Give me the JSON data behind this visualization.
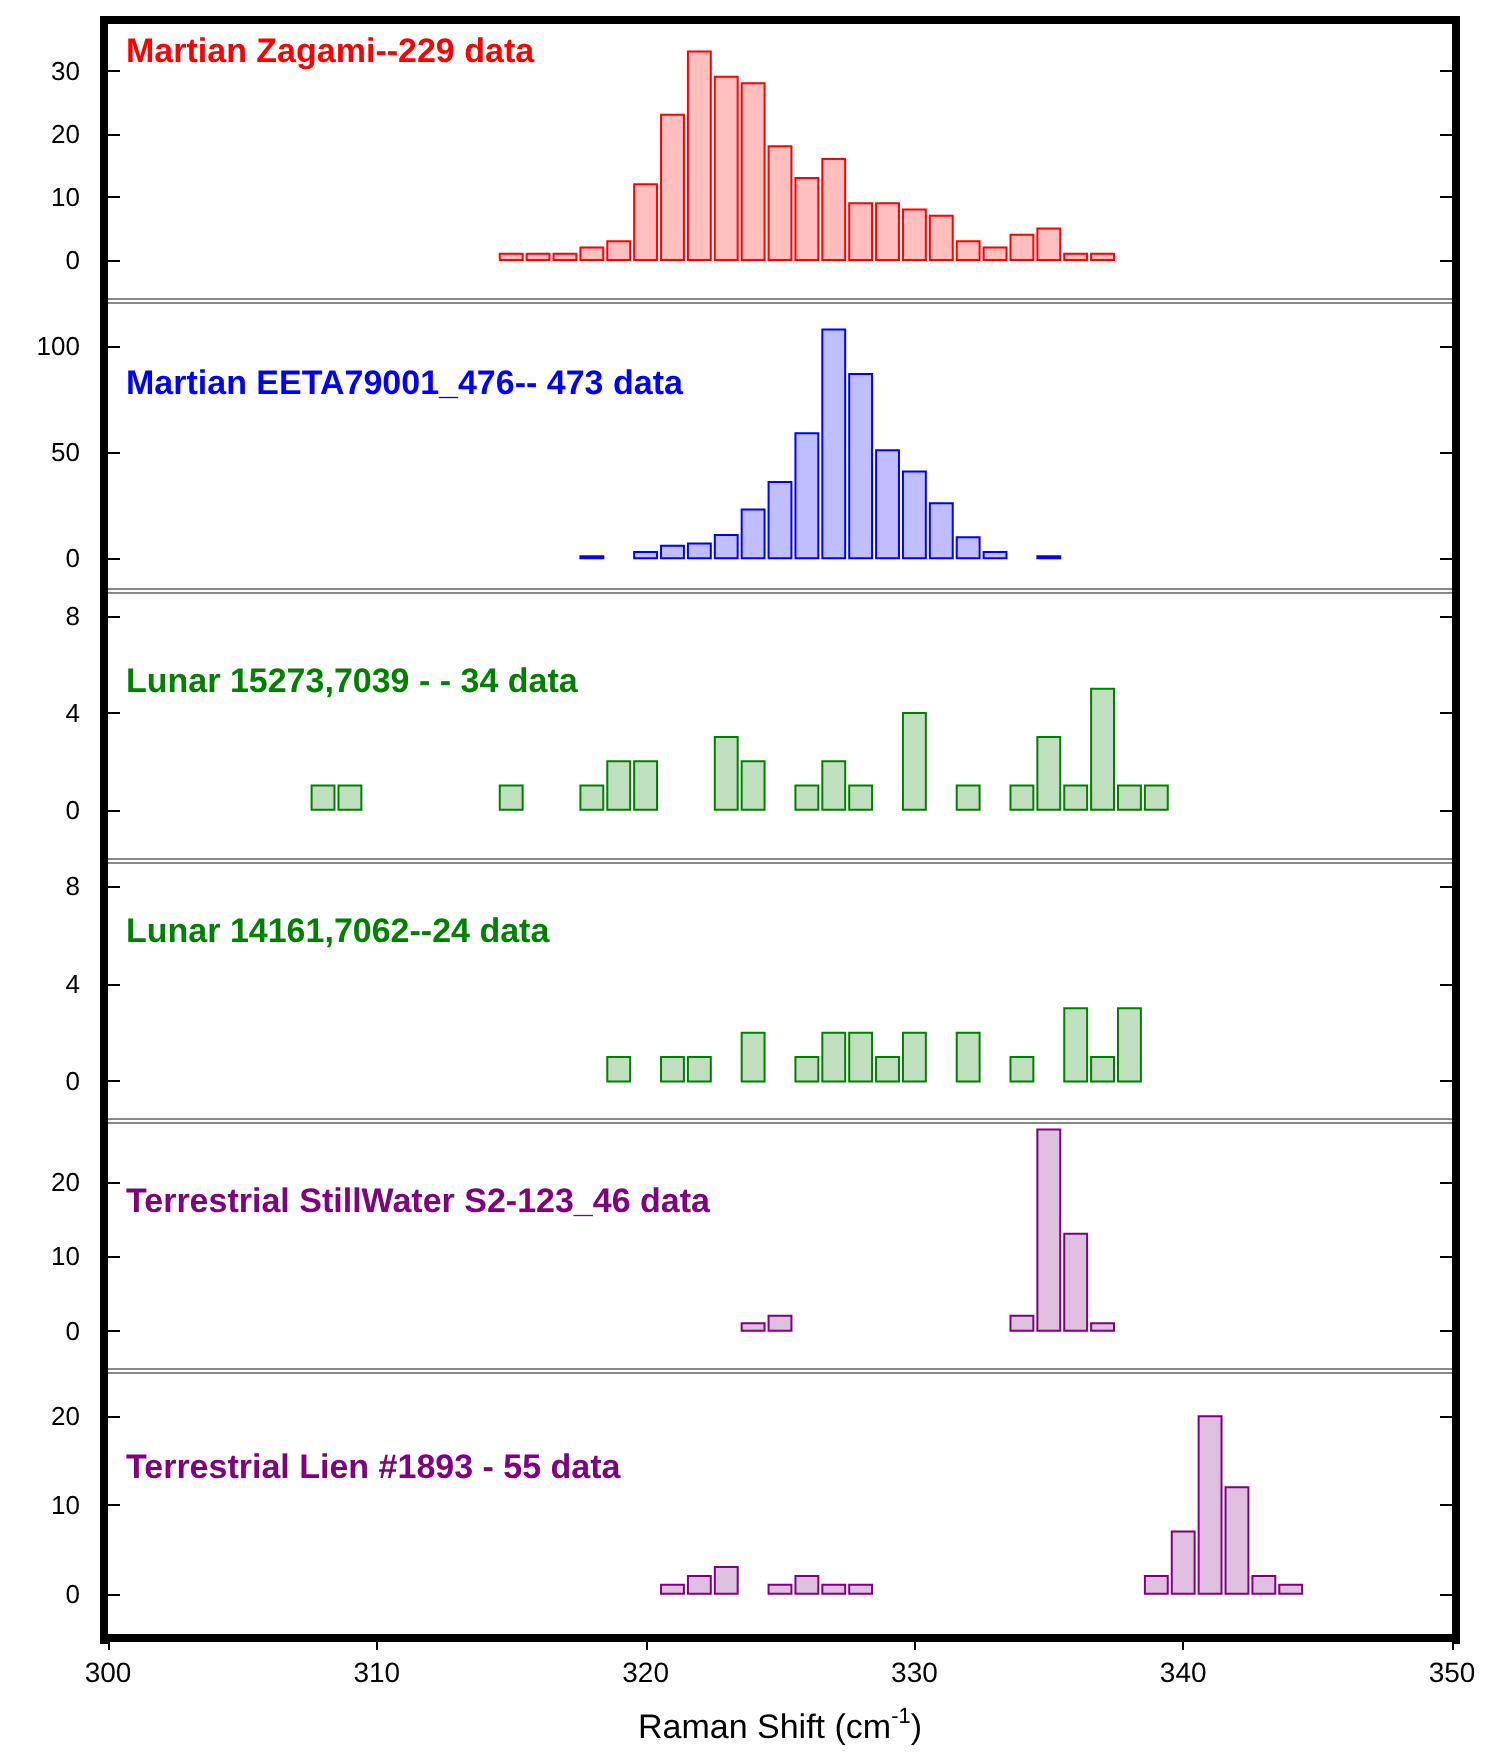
{
  "chart_data": [
    {
      "type": "histogram",
      "title": "Martian Zagami--229 data",
      "color": "#ff0000",
      "bins": [
        314.5,
        315.5,
        316.5,
        317.5,
        318.5,
        319.5,
        320.5,
        321.5,
        322.5,
        323.5,
        324.5,
        325.5,
        326.5,
        327.5,
        328.5,
        329.5,
        330.5,
        331.5,
        332.5,
        333.5,
        334.5,
        335.5,
        336.5,
        337.5
      ],
      "values": [
        1,
        1,
        1,
        2,
        3,
        12,
        23,
        33,
        29,
        28,
        18,
        13,
        16,
        9,
        9,
        8,
        7,
        3,
        2,
        4,
        5,
        1,
        1
      ],
      "xlim": [
        300,
        350
      ],
      "ylim": [
        -6,
        38
      ],
      "yticks": [
        0,
        10,
        20,
        30
      ],
      "tick_labels": "y"
    },
    {
      "type": "histogram",
      "title": "Martian EETA79001_476-- 473 data",
      "color": "#0000ff",
      "bins": [
        317.5,
        318.5,
        319.5,
        320.5,
        321.5,
        322.5,
        323.5,
        324.5,
        325.5,
        326.5,
        327.5,
        328.5,
        329.5,
        330.5,
        331.5,
        332.5,
        333.5,
        334.5,
        335.5
      ],
      "values": [
        1,
        0,
        3,
        6,
        7,
        11,
        23,
        36,
        59,
        108,
        87,
        51,
        41,
        26,
        10,
        3,
        0,
        1
      ],
      "xlim": [
        300,
        350
      ],
      "ylim": [
        -14,
        121
      ],
      "yticks": [
        0,
        50,
        100
      ],
      "tick_labels": "y"
    },
    {
      "type": "histogram",
      "title": "Lunar 15273,7039 - - 34 data",
      "color": "#008000",
      "bins": [
        307.5,
        308.5,
        309.5,
        310.5,
        311.5,
        312.5,
        313.5,
        314.5,
        315.5,
        316.5,
        317.5,
        318.5,
        319.5,
        320.5,
        321.5,
        322.5,
        323.5,
        324.5,
        325.5,
        326.5,
        327.5,
        328.5,
        329.5,
        330.5,
        331.5,
        332.5,
        333.5,
        334.5,
        335.5,
        336.5,
        337.5,
        338.5,
        339.5
      ],
      "values": [
        1,
        1,
        0,
        0,
        0,
        0,
        0,
        1,
        0,
        0,
        1,
        2,
        2,
        0,
        0,
        3,
        2,
        0,
        1,
        2,
        1,
        0,
        4,
        0,
        1,
        0,
        1,
        3,
        1,
        5,
        1,
        1
      ],
      "xlim": [
        300,
        350
      ],
      "ylim": [
        -2,
        9
      ],
      "yticks": [
        0,
        4,
        8
      ],
      "tick_labels": "y"
    },
    {
      "type": "histogram",
      "title": "Lunar 14161,7062--24 data",
      "color": "#008000",
      "bins": [
        318.5,
        319.5,
        320.5,
        321.5,
        322.5,
        323.5,
        324.5,
        325.5,
        326.5,
        327.5,
        328.5,
        329.5,
        330.5,
        331.5,
        332.5,
        333.5,
        334.5,
        335.5,
        336.5,
        337.5,
        338.5
      ],
      "values": [
        1,
        0,
        1,
        1,
        0,
        2,
        0,
        1,
        2,
        2,
        1,
        2,
        0,
        2,
        0,
        1,
        0,
        3,
        1,
        3
      ],
      "xlim": [
        300,
        350
      ],
      "ylim": [
        -1.5,
        9
      ],
      "yticks": [
        0,
        4,
        8
      ],
      "tick_labels": "y"
    },
    {
      "type": "histogram",
      "title": "Terrestrial StillWater S2-123_46 data",
      "color": "#800080",
      "bins": [
        323.5,
        324.5,
        325.5,
        326.5,
        327.5,
        328.5,
        329.5,
        330.5,
        331.5,
        332.5,
        333.5,
        334.5,
        335.5,
        336.5,
        337.5
      ],
      "values": [
        1,
        2,
        0,
        0,
        0,
        0,
        0,
        0,
        0,
        0,
        2,
        27,
        13,
        1
      ],
      "xlim": [
        300,
        350
      ],
      "ylim": [
        -5,
        28
      ],
      "yticks": [
        0,
        10,
        20
      ],
      "tick_labels": "y"
    },
    {
      "type": "histogram",
      "title": "Terrestrial Lien #1893 - 55 data",
      "color": "#800080",
      "bins": [
        320.5,
        321.5,
        322.5,
        323.5,
        324.5,
        325.5,
        326.5,
        327.5,
        328.5,
        329.5,
        330.5,
        331.5,
        332.5,
        333.5,
        334.5,
        335.5,
        336.5,
        337.5,
        338.5,
        339.5,
        340.5,
        341.5,
        342.5,
        343.5,
        344.5
      ],
      "values": [
        1,
        2,
        3,
        0,
        1,
        2,
        1,
        1,
        0,
        0,
        0,
        0,
        0,
        0,
        0,
        0,
        0,
        0,
        2,
        7,
        20,
        12,
        2,
        1
      ],
      "xlim": [
        300,
        350
      ],
      "ylim": [
        -5,
        25
      ],
      "yticks": [
        0,
        10,
        20
      ],
      "xticks": [
        300,
        310,
        320,
        330,
        340,
        350
      ],
      "xlabel": "Raman Shift (cm$^{-1}$)"
    }
  ]
}
